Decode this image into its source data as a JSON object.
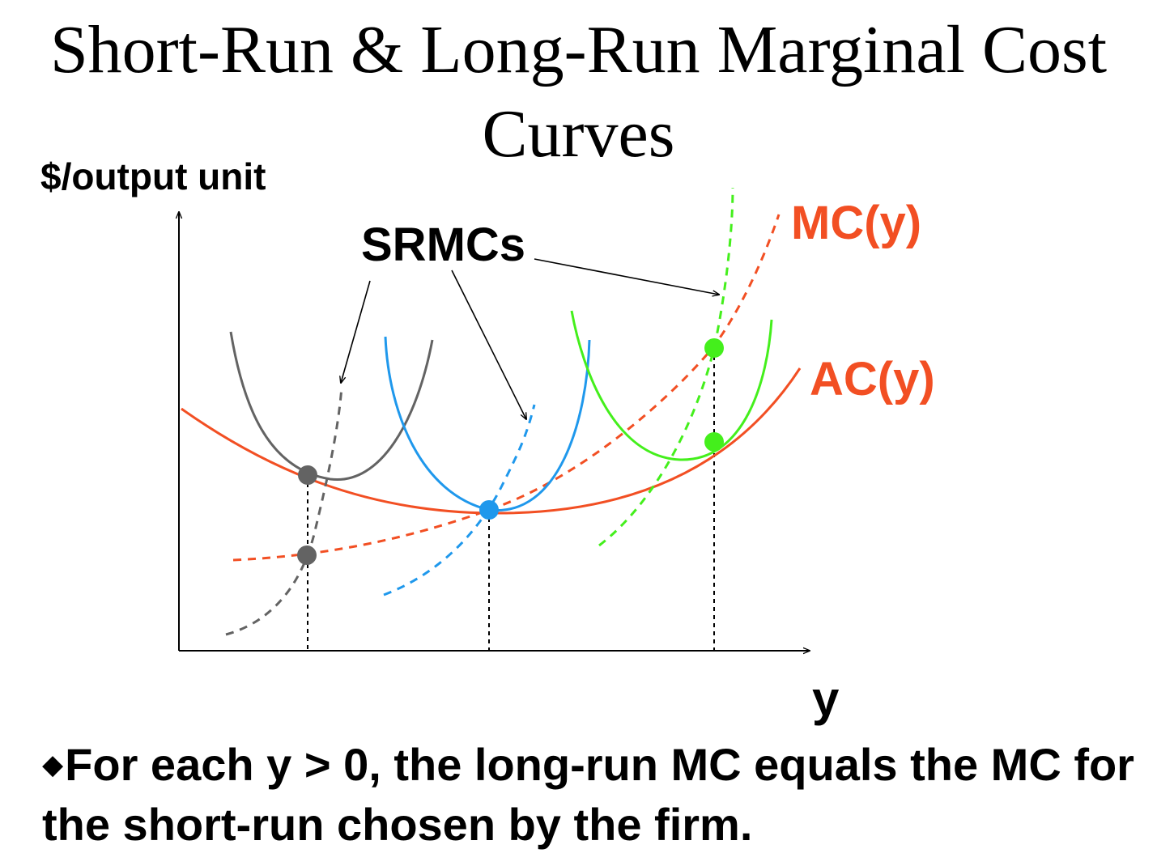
{
  "slide": {
    "title_line1": "Short-Run & Long-Run Marginal Cost",
    "title_line2": "Curves",
    "bullet_symbol": "◆",
    "bullet_text": "For each y > 0, the long-run MC equals the MC for the short-run chosen by the firm."
  },
  "chart_data": {
    "type": "diagram",
    "y_axis_label": "$/output unit",
    "x_axis_label": "y",
    "annotation_label": "SRMCs",
    "curves": [
      {
        "name": "MC(y)",
        "style": "dashed",
        "color": "#f24f23"
      },
      {
        "name": "AC(y)",
        "style": "solid",
        "color": "#f24f23"
      }
    ],
    "short_run_colors": [
      "#636363",
      "#1f98ec",
      "#44ef1c"
    ],
    "label_color": "#f24f23"
  }
}
